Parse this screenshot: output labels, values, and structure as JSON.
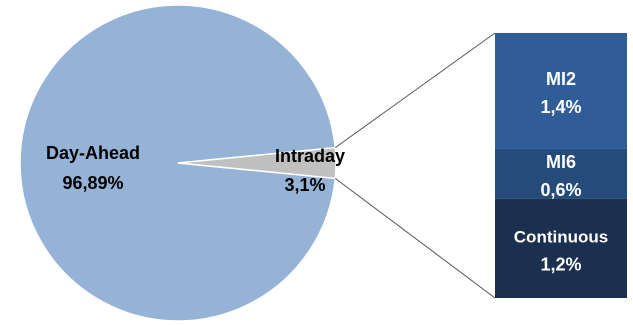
{
  "chart_data": {
    "type": "pie",
    "title": "",
    "slices": [
      {
        "name": "Day-Ahead",
        "value": 96.89,
        "label_value": "96,89%",
        "color": "#95b3d7"
      },
      {
        "name": "Intraday",
        "value": 3.1,
        "label_value": "3,1%",
        "color": "#c0c0c0"
      }
    ],
    "breakdown": {
      "of": "Intraday",
      "type": "stacked-bar",
      "segments": [
        {
          "name": "MI2",
          "value": 1.4,
          "label_value": "1,4%",
          "color": "#305d98"
        },
        {
          "name": "MI6",
          "value": 0.6,
          "label_value": "0,6%",
          "color": "#254b7a"
        },
        {
          "name": "Continuous",
          "value": 1.2,
          "label_value": "1,2%",
          "color": "#1b2f4f"
        }
      ]
    },
    "label_colors": {
      "pie": "#000000",
      "bar": "#ffffff"
    },
    "connector_color": "#555555"
  }
}
